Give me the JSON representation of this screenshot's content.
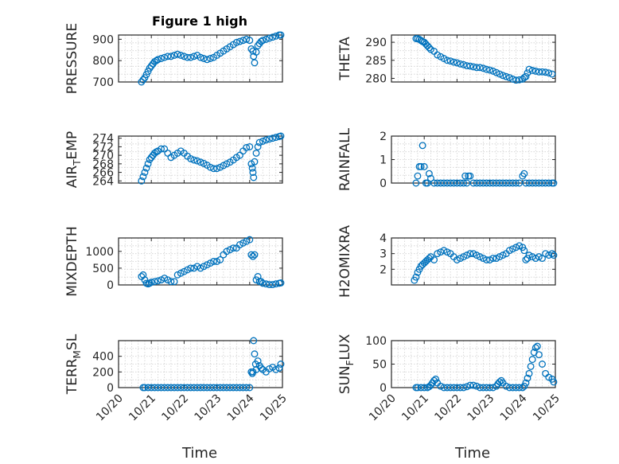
{
  "figure": {
    "title": "Figure 1 high",
    "xlabel": "Time",
    "marker_color": "#0072bd"
  },
  "chart_data": [
    {
      "type": "scatter",
      "id": "pressure",
      "ylabel": "PRESSURE",
      "ylim": [
        700,
        920
      ],
      "yticks": [
        700,
        800,
        900
      ],
      "xlim": [
        20,
        25
      ],
      "grid": true,
      "x": [
        20.7,
        20.75,
        20.8,
        20.85,
        20.9,
        20.95,
        21.0,
        21.05,
        21.1,
        21.15,
        21.2,
        21.3,
        21.4,
        21.5,
        21.6,
        21.7,
        21.8,
        21.9,
        22.0,
        22.1,
        22.2,
        22.3,
        22.4,
        22.5,
        22.6,
        22.7,
        22.8,
        22.9,
        23.0,
        23.1,
        23.2,
        23.3,
        23.4,
        23.5,
        23.6,
        23.7,
        23.8,
        23.9,
        24.0,
        24.05,
        24.1,
        24.12,
        24.15,
        24.2,
        24.25,
        24.3,
        24.35,
        24.4,
        24.5,
        24.6,
        24.7,
        24.8,
        24.9,
        24.95
      ],
      "y": [
        700,
        710,
        720,
        735,
        750,
        765,
        775,
        785,
        795,
        800,
        805,
        810,
        815,
        820,
        820,
        825,
        830,
        825,
        820,
        815,
        815,
        820,
        825,
        815,
        810,
        805,
        810,
        815,
        825,
        835,
        845,
        855,
        865,
        875,
        885,
        890,
        895,
        900,
        895,
        855,
        845,
        820,
        790,
        840,
        870,
        880,
        890,
        895,
        900,
        905,
        910,
        915,
        920,
        920
      ]
    },
    {
      "type": "scatter",
      "id": "theta",
      "ylabel": "THETA",
      "ylim": [
        279,
        292
      ],
      "yticks": [
        280,
        285,
        290
      ],
      "xlim": [
        20,
        25
      ],
      "grid": true,
      "x": [
        20.75,
        20.8,
        20.85,
        20.9,
        20.95,
        21.0,
        21.05,
        21.1,
        21.15,
        21.2,
        21.3,
        21.4,
        21.5,
        21.6,
        21.7,
        21.8,
        21.9,
        22.0,
        22.1,
        22.2,
        22.3,
        22.4,
        22.5,
        22.6,
        22.7,
        22.8,
        22.9,
        23.0,
        23.1,
        23.2,
        23.3,
        23.4,
        23.5,
        23.6,
        23.7,
        23.8,
        23.9,
        24.0,
        24.05,
        24.1,
        24.15,
        24.2,
        24.3,
        24.4,
        24.5,
        24.6,
        24.7,
        24.8,
        24.9
      ],
      "y": [
        291,
        291,
        290.8,
        290.5,
        290.2,
        290,
        289.5,
        289,
        288.5,
        288,
        287.5,
        286.5,
        286,
        285.5,
        285,
        284.8,
        284.5,
        284.3,
        284,
        283.8,
        283.5,
        283.4,
        283.2,
        283,
        283,
        282.8,
        282.5,
        282.3,
        282,
        281.6,
        281.2,
        280.8,
        280.5,
        280.2,
        279.8,
        279.5,
        279.6,
        279.8,
        280.2,
        280.5,
        281.5,
        282.5,
        282.2,
        282,
        281.8,
        281.8,
        281.7,
        281.5,
        281.2
      ]
    },
    {
      "type": "scatter",
      "id": "airtemp",
      "ylabel": "AIR_TEMP",
      "ylabel_parts": [
        "AIR",
        "T",
        "EMP"
      ],
      "ylim": [
        263.5,
        274.5
      ],
      "yticks": [
        264,
        266,
        268,
        270,
        272,
        274
      ],
      "xlim": [
        20,
        25
      ],
      "grid": true,
      "x": [
        20.7,
        20.75,
        20.8,
        20.85,
        20.9,
        20.95,
        21.0,
        21.05,
        21.1,
        21.15,
        21.2,
        21.3,
        21.4,
        21.5,
        21.6,
        21.7,
        21.8,
        21.9,
        22.0,
        22.1,
        22.2,
        22.3,
        22.4,
        22.5,
        22.6,
        22.7,
        22.8,
        22.9,
        23.0,
        23.1,
        23.2,
        23.3,
        23.4,
        23.5,
        23.6,
        23.7,
        23.8,
        23.9,
        24.0,
        24.05,
        24.08,
        24.1,
        24.12,
        24.15,
        24.2,
        24.25,
        24.3,
        24.4,
        24.5,
        24.6,
        24.7,
        24.8,
        24.9,
        24.95
      ],
      "y": [
        264,
        265,
        266,
        267,
        268,
        269,
        269.5,
        270,
        270.5,
        270.8,
        271,
        271.5,
        271.5,
        270.5,
        269.5,
        270,
        270.5,
        271,
        270.5,
        269.8,
        269.2,
        268.9,
        268.7,
        268.4,
        268.1,
        267.7,
        267.2,
        266.9,
        266.9,
        267.2,
        267.6,
        268,
        268.4,
        268.9,
        269.5,
        270,
        271,
        271.8,
        272,
        268,
        267,
        266,
        264.8,
        268.5,
        270.5,
        272,
        273,
        273.3,
        273.6,
        273.8,
        274,
        274.2,
        274.4,
        274.5
      ]
    },
    {
      "type": "scatter",
      "id": "rainfall",
      "ylabel": "RAINFALL",
      "ylim": [
        0,
        2
      ],
      "yticks": [
        0,
        1,
        2
      ],
      "xlim": [
        20,
        25
      ],
      "grid": true,
      "x": [
        20.75,
        20.8,
        20.85,
        20.9,
        20.95,
        21.0,
        21.05,
        21.1,
        21.15,
        21.2,
        21.3,
        21.4,
        21.5,
        21.6,
        21.7,
        21.8,
        21.9,
        22.0,
        22.1,
        22.2,
        22.25,
        22.3,
        22.35,
        22.4,
        22.5,
        22.6,
        22.7,
        22.8,
        22.9,
        23.0,
        23.1,
        23.2,
        23.3,
        23.4,
        23.5,
        23.6,
        23.7,
        23.8,
        23.9,
        24.0,
        24.05,
        24.1,
        24.2,
        24.3,
        24.4,
        24.5,
        24.6,
        24.7,
        24.8,
        24.9,
        24.95
      ],
      "y": [
        0,
        0.3,
        0.7,
        0.7,
        1.6,
        0.7,
        0,
        0,
        0.4,
        0.2,
        0,
        0,
        0,
        0,
        0,
        0,
        0,
        0,
        0,
        0,
        0.3,
        0,
        0.3,
        0.3,
        0,
        0,
        0,
        0,
        0,
        0,
        0,
        0,
        0,
        0,
        0,
        0,
        0,
        0,
        0,
        0.3,
        0.4,
        0,
        0,
        0,
        0,
        0,
        0,
        0,
        0,
        0,
        0
      ]
    },
    {
      "type": "scatter",
      "id": "mixdepth",
      "ylabel": "MIXDEPTH",
      "ylim": [
        0,
        1400
      ],
      "yticks": [
        0,
        500,
        1000
      ],
      "xlim": [
        20,
        25
      ],
      "grid": true,
      "x": [
        20.7,
        20.75,
        20.8,
        20.85,
        20.9,
        20.95,
        21.0,
        21.1,
        21.2,
        21.3,
        21.4,
        21.5,
        21.6,
        21.7,
        21.8,
        21.9,
        22.0,
        22.1,
        22.2,
        22.3,
        22.4,
        22.5,
        22.6,
        22.7,
        22.8,
        22.9,
        23.0,
        23.1,
        23.2,
        23.3,
        23.4,
        23.5,
        23.6,
        23.7,
        23.8,
        23.9,
        24.0,
        24.05,
        24.1,
        24.15,
        24.2,
        24.25,
        24.3,
        24.35,
        24.4,
        24.5,
        24.6,
        24.7,
        24.8,
        24.9,
        24.95
      ],
      "y": [
        250,
        300,
        150,
        50,
        30,
        50,
        80,
        100,
        120,
        150,
        200,
        150,
        100,
        100,
        300,
        350,
        400,
        450,
        500,
        500,
        550,
        500,
        550,
        600,
        650,
        700,
        700,
        750,
        900,
        1000,
        1050,
        1100,
        1100,
        1200,
        1250,
        1300,
        1350,
        900,
        850,
        900,
        150,
        250,
        100,
        100,
        50,
        30,
        10,
        10,
        30,
        50,
        60
      ]
    },
    {
      "type": "scatter",
      "id": "h2omixra",
      "ylabel": "H2OMIXRA",
      "ylim": [
        1,
        4
      ],
      "yticks": [
        2,
        3,
        4
      ],
      "xlim": [
        20,
        25
      ],
      "grid": true,
      "x": [
        20.7,
        20.75,
        20.8,
        20.85,
        20.9,
        20.95,
        21.0,
        21.05,
        21.1,
        21.15,
        21.2,
        21.3,
        21.4,
        21.5,
        21.6,
        21.7,
        21.8,
        21.9,
        22.0,
        22.1,
        22.2,
        22.3,
        22.4,
        22.5,
        22.6,
        22.7,
        22.8,
        22.9,
        23.0,
        23.1,
        23.2,
        23.3,
        23.4,
        23.5,
        23.6,
        23.7,
        23.8,
        23.9,
        24.0,
        24.05,
        24.1,
        24.15,
        24.2,
        24.3,
        24.4,
        24.5,
        24.6,
        24.7,
        24.8,
        24.9,
        24.95
      ],
      "y": [
        1.3,
        1.5,
        1.8,
        2.0,
        2.2,
        2.3,
        2.4,
        2.5,
        2.6,
        2.7,
        2.8,
        2.6,
        3.0,
        3.1,
        3.2,
        3.1,
        3.0,
        2.8,
        2.6,
        2.7,
        2.8,
        2.9,
        3.0,
        3.0,
        2.9,
        2.8,
        2.7,
        2.6,
        2.6,
        2.7,
        2.7,
        2.8,
        2.9,
        3.0,
        3.2,
        3.3,
        3.4,
        3.5,
        3.4,
        3.2,
        2.6,
        2.7,
        2.9,
        2.8,
        2.7,
        2.8,
        2.7,
        3.0,
        2.9,
        3.0,
        2.9
      ]
    },
    {
      "type": "scatter",
      "id": "terrmsl",
      "ylabel": "TERR_MSL",
      "ylabel_parts": [
        "TERR",
        "M",
        "SL"
      ],
      "ylim": [
        0,
        600
      ],
      "yticks": [
        0,
        200,
        400
      ],
      "xlim": [
        20,
        25
      ],
      "grid": true,
      "x": [
        20.75,
        20.8,
        20.9,
        21.0,
        21.1,
        21.2,
        21.3,
        21.4,
        21.5,
        21.6,
        21.7,
        21.8,
        21.9,
        22.0,
        22.1,
        22.2,
        22.3,
        22.4,
        22.5,
        22.6,
        22.7,
        22.8,
        22.9,
        23.0,
        23.1,
        23.2,
        23.3,
        23.4,
        23.5,
        23.6,
        23.7,
        23.8,
        23.9,
        24.0,
        24.05,
        24.08,
        24.1,
        24.12,
        24.15,
        24.18,
        24.2,
        24.25,
        24.3,
        24.35,
        24.4,
        24.5,
        24.6,
        24.7,
        24.8,
        24.9,
        24.95
      ],
      "y": [
        0,
        0,
        0,
        0,
        0,
        0,
        0,
        0,
        0,
        0,
        0,
        0,
        0,
        0,
        0,
        0,
        0,
        0,
        0,
        0,
        0,
        0,
        0,
        0,
        0,
        0,
        0,
        0,
        0,
        0,
        0,
        0,
        0,
        0,
        200,
        180,
        200,
        600,
        430,
        300,
        230,
        340,
        280,
        250,
        230,
        200,
        240,
        260,
        230,
        250,
        300
      ]
    },
    {
      "type": "scatter",
      "id": "sunflux",
      "ylabel": "SUN_FLUX",
      "ylabel_parts": [
        "SUN",
        "F",
        "LUX"
      ],
      "ylim": [
        0,
        100
      ],
      "yticks": [
        0,
        50,
        100
      ],
      "xlim": [
        20,
        25
      ],
      "grid": true,
      "x": [
        20.75,
        20.8,
        20.9,
        21.0,
        21.1,
        21.15,
        21.2,
        21.25,
        21.3,
        21.35,
        21.4,
        21.5,
        21.6,
        21.7,
        21.8,
        21.9,
        22.0,
        22.1,
        22.2,
        22.3,
        22.4,
        22.5,
        22.6,
        22.7,
        22.8,
        22.9,
        23.0,
        23.1,
        23.2,
        23.25,
        23.3,
        23.35,
        23.4,
        23.5,
        23.6,
        23.7,
        23.8,
        23.9,
        24.0,
        24.05,
        24.1,
        24.15,
        24.2,
        24.25,
        24.3,
        24.35,
        24.4,
        24.45,
        24.5,
        24.6,
        24.7,
        24.8,
        24.9,
        24.95
      ],
      "y": [
        0,
        0,
        0,
        0,
        0,
        2,
        5,
        10,
        15,
        18,
        10,
        3,
        0,
        0,
        0,
        0,
        0,
        0,
        0,
        2,
        5,
        5,
        3,
        0,
        0,
        0,
        0,
        0,
        3,
        8,
        12,
        15,
        10,
        3,
        0,
        0,
        0,
        0,
        0,
        3,
        10,
        20,
        30,
        45,
        60,
        75,
        85,
        88,
        70,
        50,
        30,
        22,
        18,
        12
      ]
    }
  ],
  "x_ticks": [
    {
      "v": 20,
      "label": "10/20"
    },
    {
      "v": 21,
      "label": "10/21"
    },
    {
      "v": 22,
      "label": "10/22"
    },
    {
      "v": 23,
      "label": "10/23"
    },
    {
      "v": 24,
      "label": "10/24"
    },
    {
      "v": 25,
      "label": "10/25"
    }
  ]
}
